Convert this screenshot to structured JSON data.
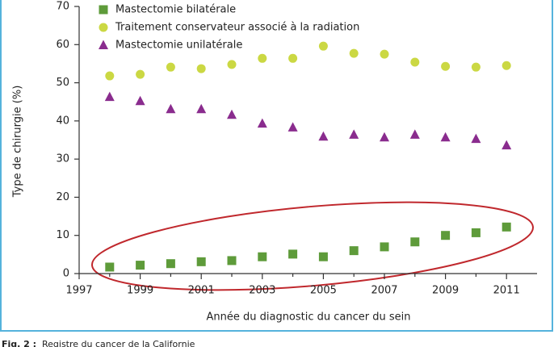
{
  "chart_data": {
    "type": "scatter",
    "x_label": "Année du diagnostic du cancer du sein",
    "y_label": "Type de chirurgie (%)",
    "caption_label": "Fig. 2 :",
    "caption": "Registre du cancer de la Californie",
    "x": [
      1998,
      1999,
      2000,
      2001,
      2002,
      2003,
      2004,
      2005,
      2006,
      2007,
      2008,
      2009,
      2010,
      2011
    ],
    "series": [
      {
        "name": "Mastectomie bilatérale",
        "color": "#5e9b3a",
        "marker": "square",
        "values": [
          1.7,
          2.2,
          2.6,
          3.1,
          3.4,
          4.4,
          5.1,
          4.4,
          6.0,
          7.0,
          8.3,
          10.0,
          10.7,
          12.2
        ]
      },
      {
        "name": "Traitement conservateur associé à la radiation",
        "color": "#cbd843",
        "marker": "circle",
        "values": [
          51.8,
          52.2,
          54.1,
          53.7,
          54.8,
          56.4,
          56.4,
          59.6,
          57.7,
          57.5,
          55.4,
          54.3,
          54.1,
          54.5
        ]
      },
      {
        "name": "Mastectomie unilatérale",
        "color": "#8a2c8e",
        "marker": "triangle",
        "values": [
          46.3,
          45.2,
          43.1,
          43.1,
          41.6,
          39.3,
          38.3,
          35.9,
          36.4,
          35.7,
          36.4,
          35.7,
          35.3,
          33.6
        ]
      }
    ],
    "xlim": [
      1997,
      2012
    ],
    "xticks": [
      1997,
      1999,
      2001,
      2003,
      2005,
      2007,
      2009,
      2011
    ],
    "xminorticks": [
      1998,
      2000,
      2002,
      2004,
      2006,
      2008,
      2010
    ],
    "ylim": [
      0,
      70
    ],
    "yticks": [
      0,
      10,
      20,
      30,
      40,
      50,
      60,
      70
    ],
    "grid": false
  }
}
